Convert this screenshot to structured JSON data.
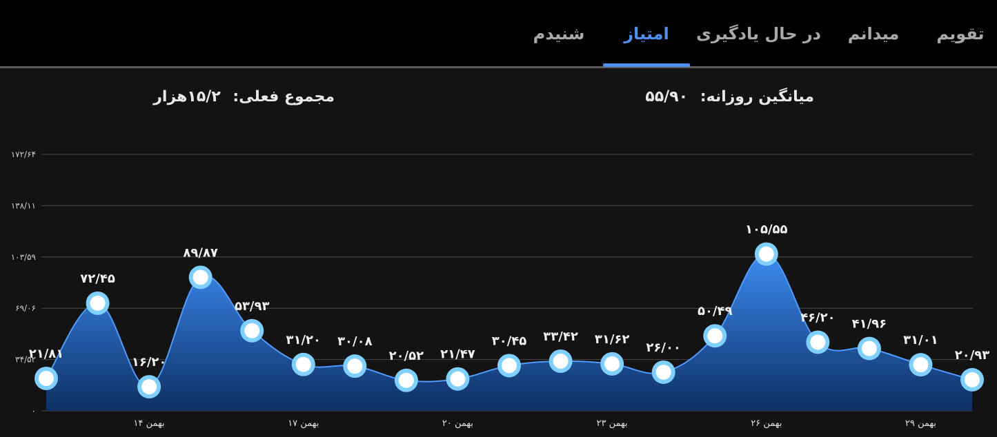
{
  "tabs": [
    {
      "id": "calendar",
      "label": "تقویم",
      "active": false
    },
    {
      "id": "field",
      "label": "میدانم",
      "active": false
    },
    {
      "id": "learning",
      "label": "در حال یادگیری",
      "active": false
    },
    {
      "id": "score",
      "label": "امتیاز",
      "active": true
    },
    {
      "id": "heard",
      "label": "شنیدم",
      "active": false
    }
  ],
  "summary": {
    "daily_average_label": "میانگین روزانه:",
    "daily_average_value": "۵۵/۹۰",
    "total_label": "مجموع فعلی:",
    "total_value": "۱۵/۲هزار"
  },
  "colors": {
    "accent": "#4f8ff0",
    "area_top": "#3d8bf2",
    "area_bottom": "#0d2f63",
    "point_fill": "#ffffff",
    "point_ring": "#7fd0ff"
  },
  "chart_data": {
    "type": "area",
    "ylim": [
      0,
      172.64
    ],
    "y_ticks": [
      0,
      34.52,
      69.06,
      103.59,
      138.11,
      172.64
    ],
    "y_tick_labels": [
      "۰",
      "۳۴/۵۲",
      "۶۹/۰۶",
      "۱۰۳/۵۹",
      "۱۳۸/۱۱",
      "۱۷۲/۶۴"
    ],
    "x_tick_labels": [
      {
        "index": 2,
        "label": "۱۴ بهمن"
      },
      {
        "index": 5,
        "label": "۱۷ بهمن"
      },
      {
        "index": 8,
        "label": "۲۰ بهمن"
      },
      {
        "index": 11,
        "label": "۲۳ بهمن"
      },
      {
        "index": 14,
        "label": "۲۶ بهمن"
      },
      {
        "index": 17,
        "label": "۲۹ بهمن"
      }
    ],
    "values": [
      21.81,
      72.45,
      16.2,
      89.87,
      53.93,
      31.2,
      30.08,
      20.52,
      21.47,
      30.45,
      33.42,
      31.62,
      26.0,
      50.49,
      105.55,
      46.2,
      41.96,
      31.01,
      20.93
    ],
    "value_labels": [
      "۲۱/۸۱",
      "۷۲/۴۵",
      "۱۶/۲۰",
      "۸۹/۸۷",
      "۵۳/۹۳",
      "۳۱/۲۰",
      "۳۰/۰۸",
      "۲۰/۵۲",
      "۲۱/۴۷",
      "۳۰/۴۵",
      "۳۳/۴۲",
      "۳۱/۶۲",
      "۲۶/۰۰",
      "۵۰/۴۹",
      "۱۰۵/۵۵",
      "۴۶/۲۰",
      "۴۱/۹۶",
      "۳۱/۰۱",
      "۲۰/۹۳"
    ],
    "grid": true
  }
}
